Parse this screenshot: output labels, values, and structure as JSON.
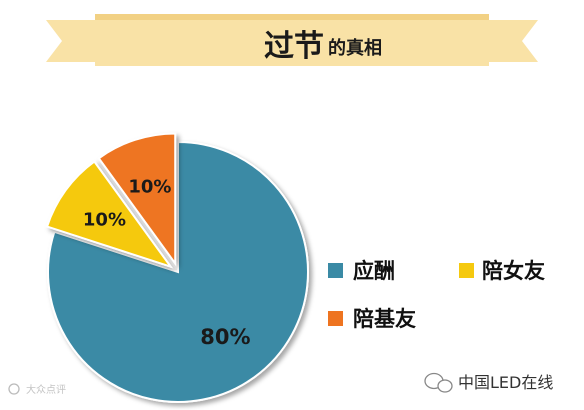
{
  "chart_data": {
    "type": "pie",
    "title": "过节的真相",
    "title_main": "过节",
    "title_sub": "的真相",
    "slices": [
      {
        "label": "应酬",
        "value": 80,
        "value_label": "80%",
        "color": "#3a8aa5"
      },
      {
        "label": "陪女友",
        "value": 10,
        "value_label": "10%",
        "color": "#f5c90f",
        "exploded": true
      },
      {
        "label": "陪基友",
        "value": 10,
        "value_label": "10%",
        "color": "#ee7420",
        "exploded": true
      }
    ],
    "legend_placement": "right",
    "title_banner_color": "#f9e2a6"
  },
  "watermarks": {
    "left": "大众点评",
    "right": "中国LED在线"
  }
}
